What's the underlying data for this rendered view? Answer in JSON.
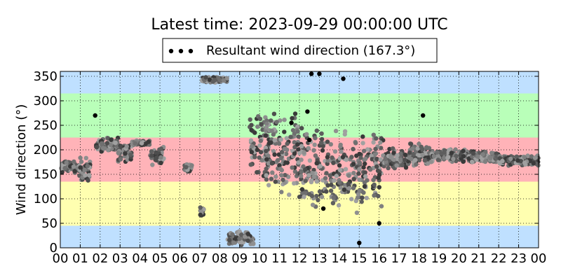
{
  "chart_data": {
    "type": "scatter",
    "title": "Latest time: 2023-09-29 00:00:00 UTC",
    "xlabel": "",
    "ylabel": "Wind direction (°)",
    "xlim": [
      0,
      24
    ],
    "ylim": [
      0,
      360
    ],
    "x_unit": "hour (UTC)",
    "x_ticks": [
      0,
      1,
      2,
      3,
      4,
      5,
      6,
      7,
      8,
      9,
      10,
      11,
      12,
      13,
      14,
      15,
      16,
      17,
      18,
      19,
      20,
      21,
      22,
      23,
      24
    ],
    "x_tick_labels": [
      "00",
      "01",
      "02",
      "03",
      "04",
      "05",
      "06",
      "07",
      "08",
      "09",
      "10",
      "11",
      "12",
      "13",
      "14",
      "15",
      "16",
      "17",
      "18",
      "19",
      "20",
      "21",
      "22",
      "23",
      "00"
    ],
    "y_ticks": [
      0,
      50,
      100,
      150,
      200,
      250,
      300,
      350
    ],
    "y_tick_labels": [
      "0",
      "50",
      "100",
      "150",
      "200",
      "250",
      "300",
      "350"
    ],
    "grid": true,
    "legend": {
      "position": "top-center",
      "entries": [
        "Resultant wind direction (167.3°)"
      ]
    },
    "bands": [
      {
        "from": 0,
        "to": 45,
        "color": "#bfe0ff"
      },
      {
        "from": 45,
        "to": 135,
        "color": "#ffffb0"
      },
      {
        "from": 135,
        "to": 225,
        "color": "#ffb3b8"
      },
      {
        "from": 225,
        "to": 315,
        "color": "#b9ffb9"
      },
      {
        "from": 315,
        "to": 360,
        "color": "#bfe0ff"
      }
    ],
    "series": [
      {
        "name": "Resultant wind direction (167.3°)",
        "marker_color": "#000000",
        "segments": [
          {
            "x_start": 0.0,
            "x_end": 0.95,
            "center": 165,
            "spread": 14
          },
          {
            "x_start": 0.95,
            "x_end": 1.5,
            "center": 160,
            "spread": 30
          },
          {
            "x_start": 1.8,
            "x_end": 2.9,
            "center": 210,
            "spread": 16
          },
          {
            "x_start": 2.9,
            "x_end": 3.6,
            "center": 195,
            "spread": 22
          },
          {
            "x_start": 3.6,
            "x_end": 4.5,
            "center": 214,
            "spread": 5
          },
          {
            "x_start": 4.5,
            "x_end": 5.2,
            "center": 190,
            "spread": 22
          },
          {
            "x_start": 6.2,
            "x_end": 6.6,
            "center": 163,
            "spread": 10
          },
          {
            "x_start": 7.0,
            "x_end": 7.2,
            "center": 75,
            "spread": 12
          },
          {
            "x_start": 7.1,
            "x_end": 8.4,
            "center": 343,
            "spread": 6
          },
          {
            "x_start": 8.4,
            "x_end": 9.7,
            "center": 20,
            "spread": 15
          },
          {
            "x_start": 9.5,
            "x_end": 10.5,
            "center": 195,
            "spread": 90
          },
          {
            "x_start": 10.3,
            "x_end": 12.0,
            "center": 190,
            "spread": 95
          },
          {
            "x_start": 12.0,
            "x_end": 13.5,
            "center": 160,
            "spread": 95
          },
          {
            "x_start": 13.5,
            "x_end": 15.0,
            "center": 155,
            "spread": 95
          },
          {
            "x_start": 15.0,
            "x_end": 16.2,
            "center": 160,
            "spread": 80
          },
          {
            "x_start": 16.2,
            "x_end": 17.5,
            "center": 180,
            "spread": 25
          },
          {
            "x_start": 17.5,
            "x_end": 18.6,
            "center": 190,
            "spread": 28
          },
          {
            "x_start": 18.6,
            "x_end": 20.5,
            "center": 188,
            "spread": 15
          },
          {
            "x_start": 20.5,
            "x_end": 22.0,
            "center": 185,
            "spread": 13
          },
          {
            "x_start": 22.0,
            "x_end": 24.0,
            "center": 178,
            "spread": 11
          }
        ],
        "outliers": [
          {
            "x": 1.75,
            "y": 270
          },
          {
            "x": 12.4,
            "y": 278
          },
          {
            "x": 12.5,
            "y": 220
          },
          {
            "x": 11.6,
            "y": 255
          },
          {
            "x": 13.2,
            "y": 80
          },
          {
            "x": 12.6,
            "y": 355
          },
          {
            "x": 14.2,
            "y": 345
          },
          {
            "x": 15.0,
            "y": 10
          },
          {
            "x": 13.0,
            "y": 355
          },
          {
            "x": 16.0,
            "y": 50
          },
          {
            "x": 18.2,
            "y": 270
          }
        ]
      }
    ]
  }
}
